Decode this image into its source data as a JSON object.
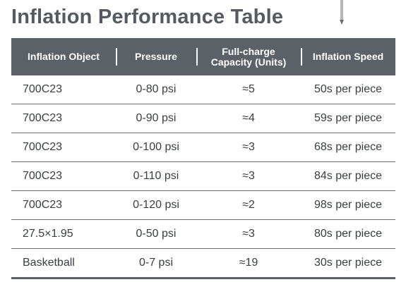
{
  "title": "Inflation Performance Table",
  "columns": [
    "Inflation Object",
    "Pressure",
    "Full-charge\nCapacity (Units)",
    "Inflation Speed"
  ],
  "rows": [
    [
      "700C23",
      "0-80 psi",
      "≈5",
      "50s per piece"
    ],
    [
      "700C23",
      "0-90 psi",
      "≈4",
      "59s per piece"
    ],
    [
      "700C23",
      "0-100 psi",
      "≈3",
      "68s per piece"
    ],
    [
      "700C23",
      "0-110 psi",
      "≈3",
      "84s per piece"
    ],
    [
      "700C23",
      "0-120 psi",
      "≈2",
      "98s per piece"
    ],
    [
      "27.5×1.95",
      "0-50 psi",
      "≈3",
      "80s per piece"
    ],
    [
      "Basketball",
      "0-7 psi",
      "≈19",
      "30s per piece"
    ]
  ],
  "colors": {
    "header_bg": "#5c6167",
    "title": "#555a60",
    "text": "#3a3d41",
    "rule": "#6b6f74"
  }
}
